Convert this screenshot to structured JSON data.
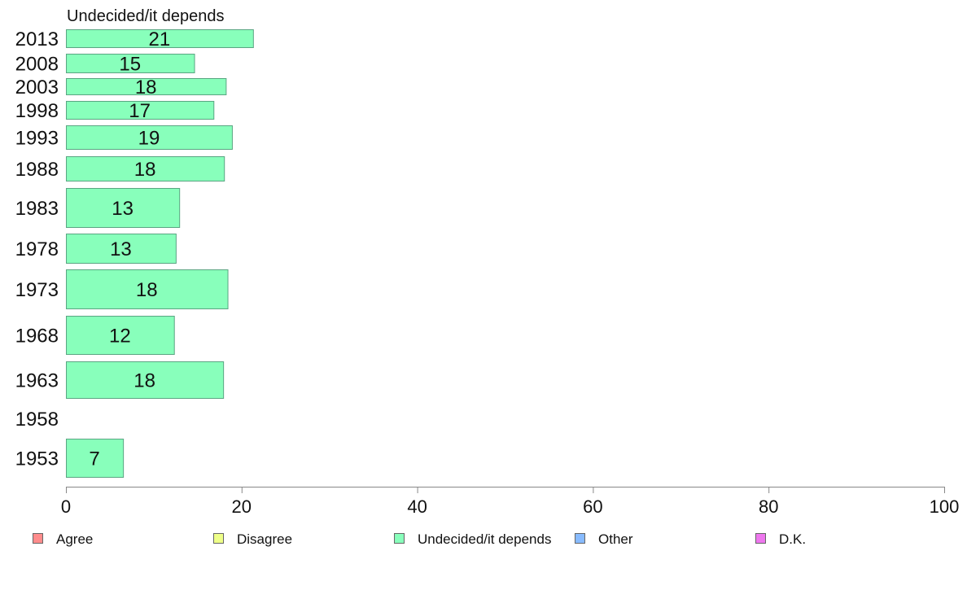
{
  "chart_data": {
    "type": "bar",
    "orientation": "horizontal",
    "panel_title": "Undecided/it depends",
    "categories": [
      "2013",
      "2008",
      "2003",
      "1998",
      "1993",
      "1988",
      "1983",
      "1978",
      "1973",
      "1968",
      "1963",
      "1958",
      "1953"
    ],
    "series": [
      {
        "name": "Undecided/it depends",
        "color": "#88ffbb",
        "values": [
          21.3,
          14.6,
          18.2,
          16.8,
          18.9,
          18.0,
          12.9,
          12.5,
          18.4,
          12.3,
          17.9,
          null,
          6.5
        ],
        "labels": [
          "21",
          "15",
          "18",
          "17",
          "19",
          "18",
          "13",
          "13",
          "18",
          "12",
          "18",
          "",
          "7"
        ]
      }
    ],
    "xlim": [
      0,
      100
    ],
    "xticks": [
      "0",
      "20",
      "40",
      "60",
      "80",
      "100"
    ],
    "legend": {
      "placement": "bottom",
      "items": [
        {
          "label": "Agree",
          "color": "#ff8c8c"
        },
        {
          "label": "Disagree",
          "color": "#eeff88"
        },
        {
          "label": "Undecided/it depends",
          "color": "#88ffbb"
        },
        {
          "label": "Other",
          "color": "#88bbff"
        },
        {
          "label": "D.K.",
          "color": "#ee77ee"
        }
      ]
    }
  }
}
